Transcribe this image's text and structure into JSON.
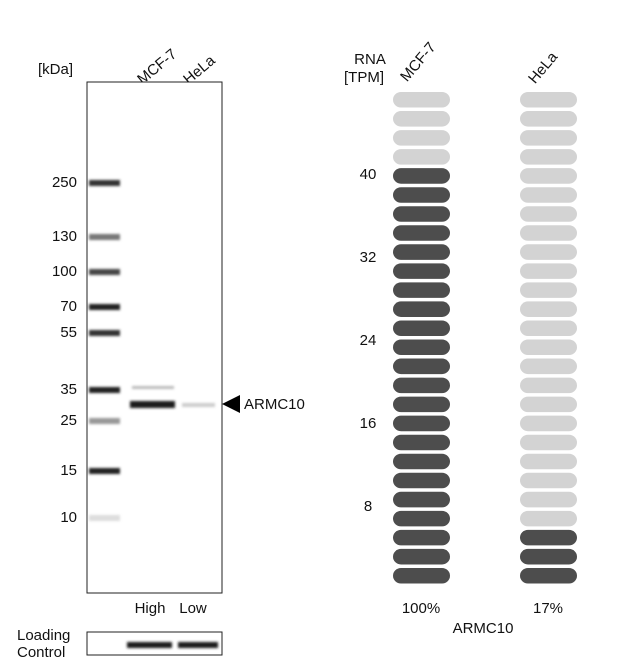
{
  "blot": {
    "unit_label": "[kDa]",
    "lanes": [
      "MCF-7",
      "HeLa"
    ],
    "markers": [
      250,
      130,
      100,
      70,
      55,
      35,
      25,
      15,
      10
    ],
    "target": "ARMC10",
    "expression": [
      "High",
      "Low"
    ],
    "loading_control": [
      "Loading",
      "Control"
    ]
  },
  "rna": {
    "axis_label": [
      "RNA",
      "[TPM]"
    ],
    "ticks": [
      40,
      32,
      24,
      16,
      8
    ],
    "total_pills": 26,
    "samples": [
      {
        "name": "MCF-7",
        "filled_pills": 22,
        "percent": "100%"
      },
      {
        "name": "HeLa",
        "filled_pills": 3,
        "percent": "17%"
      }
    ],
    "gene": "ARMC10"
  }
}
